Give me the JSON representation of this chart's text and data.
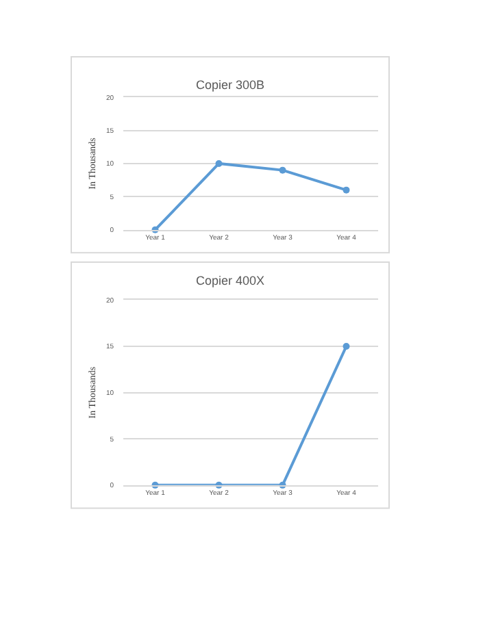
{
  "chart_data": [
    {
      "type": "line",
      "title": "Copier 300B",
      "ylabel": "In Thousands",
      "categories": [
        "Year 1",
        "Year 2",
        "Year 3",
        "Year 4"
      ],
      "series": [
        {
          "color": "#5b9bd5",
          "values": [
            0,
            10,
            9,
            6
          ]
        }
      ],
      "ylim": [
        0,
        20
      ],
      "yticks": [
        0,
        5,
        10,
        15,
        20
      ],
      "grid": "y",
      "marker": "circle",
      "line_style": "solid"
    },
    {
      "type": "line",
      "title": "Copier 400X",
      "ylabel": "In Thousands",
      "categories": [
        "Year 1",
        "Year 2",
        "Year 3",
        "Year 4"
      ],
      "series": [
        {
          "color": "#5b9bd5",
          "values": [
            0,
            0,
            0,
            15
          ]
        }
      ],
      "ylim": [
        0,
        20
      ],
      "yticks": [
        0,
        5,
        10,
        15,
        20
      ],
      "grid": "y",
      "marker": "circle",
      "line_style": "solid"
    }
  ]
}
